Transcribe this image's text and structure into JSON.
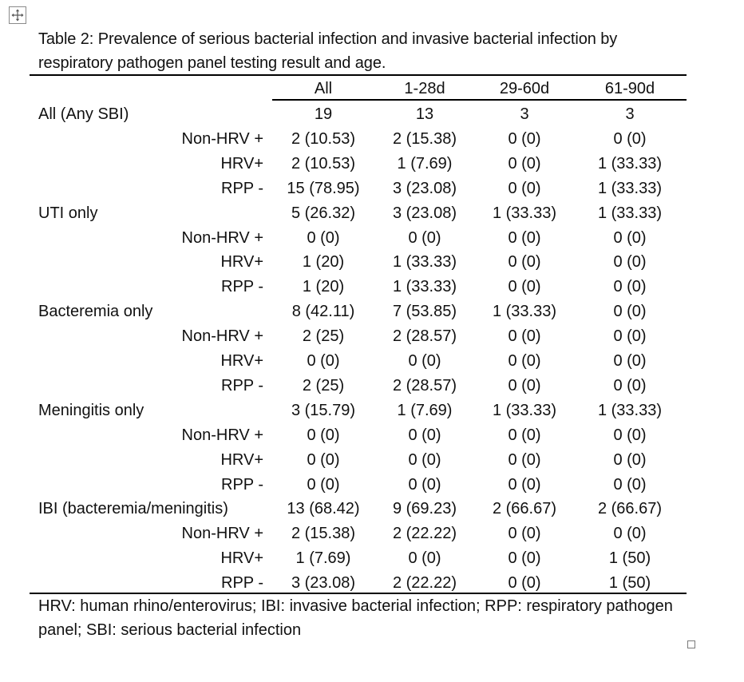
{
  "caption": "Table 2: Prevalence of serious bacterial infection and invasive bacterial infection by respiratory pathogen panel testing result and age.",
  "columns": [
    "All",
    "1-28d",
    "29-60d",
    "61-90d"
  ],
  "rows": [
    {
      "label": "All (Any SBI)",
      "kind": "group",
      "values": [
        "19",
        "13",
        "3",
        "3"
      ]
    },
    {
      "label": "Non-HRV +",
      "kind": "sub",
      "values": [
        "2 (10.53)",
        "2 (15.38)",
        "0 (0)",
        "0 (0)"
      ]
    },
    {
      "label": "HRV+",
      "kind": "sub",
      "values": [
        "2 (10.53)",
        "1 (7.69)",
        "0 (0)",
        "1 (33.33)"
      ]
    },
    {
      "label": "RPP -",
      "kind": "sub",
      "values": [
        "15 (78.95)",
        "3 (23.08)",
        "0 (0)",
        "1 (33.33)"
      ]
    },
    {
      "label": "UTI only",
      "kind": "group",
      "values": [
        "5 (26.32)",
        "3 (23.08)",
        "1 (33.33)",
        "1 (33.33)"
      ]
    },
    {
      "label": "Non-HRV +",
      "kind": "sub",
      "values": [
        "0 (0)",
        "0 (0)",
        "0 (0)",
        "0 (0)"
      ]
    },
    {
      "label": "HRV+",
      "kind": "sub",
      "values": [
        "1 (20)",
        "1 (33.33)",
        "0 (0)",
        "0 (0)"
      ]
    },
    {
      "label": "RPP -",
      "kind": "sub",
      "values": [
        "1 (20)",
        "1 (33.33)",
        "0 (0)",
        "0 (0)"
      ]
    },
    {
      "label": "Bacteremia only",
      "kind": "group",
      "values": [
        "8 (42.11)",
        "7 (53.85)",
        "1 (33.33)",
        "0 (0)"
      ]
    },
    {
      "label": "Non-HRV +",
      "kind": "sub",
      "values": [
        "2 (25)",
        "2 (28.57)",
        "0 (0)",
        "0 (0)"
      ]
    },
    {
      "label": "HRV+",
      "kind": "sub",
      "values": [
        "0 (0)",
        "0 (0)",
        "0 (0)",
        "0 (0)"
      ]
    },
    {
      "label": "RPP -",
      "kind": "sub",
      "values": [
        "2 (25)",
        "2 (28.57)",
        "0 (0)",
        "0 (0)"
      ]
    },
    {
      "label": "Meningitis only",
      "kind": "group",
      "values": [
        "3 (15.79)",
        "1 (7.69)",
        "1 (33.33)",
        "1 (33.33)"
      ]
    },
    {
      "label": "Non-HRV +",
      "kind": "sub",
      "values": [
        "0 (0)",
        "0 (0)",
        "0 (0)",
        "0 (0)"
      ]
    },
    {
      "label": "HRV+",
      "kind": "sub",
      "values": [
        "0 (0)",
        "0 (0)",
        "0 (0)",
        "0 (0)"
      ]
    },
    {
      "label": "RPP -",
      "kind": "sub",
      "values": [
        "0 (0)",
        "0 (0)",
        "0 (0)",
        "0 (0)"
      ]
    },
    {
      "label": "IBI (bacteremia/meningitis)",
      "kind": "group",
      "values": [
        "13 (68.42)",
        "9 (69.23)",
        "2 (66.67)",
        "2 (66.67)"
      ]
    },
    {
      "label": "Non-HRV +",
      "kind": "sub",
      "values": [
        "2 (15.38)",
        "2 (22.22)",
        "0 (0)",
        "0 (0)"
      ]
    },
    {
      "label": "HRV+",
      "kind": "sub",
      "values": [
        "1 (7.69)",
        "0 (0)",
        "0 (0)",
        "1 (50)"
      ]
    },
    {
      "label": "RPP -",
      "kind": "sub",
      "values": [
        "3 (23.08)",
        "2 (22.22)",
        "0 (0)",
        "1 (50)"
      ]
    }
  ],
  "footnote": "HRV: human rhino/enterovirus; IBI: invasive bacterial infection; RPP: respiratory pathogen panel; SBI: serious bacterial infection",
  "icons": {
    "move_handle": "move-arrows-icon",
    "resize_handle": "resize-square-icon"
  }
}
